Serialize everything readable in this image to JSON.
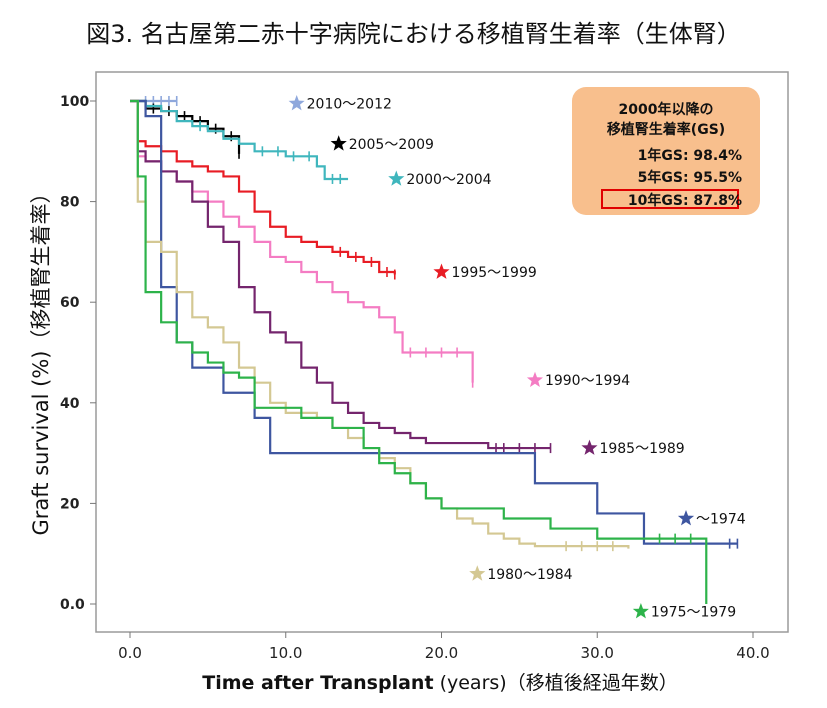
{
  "title": "図3. 名古屋第二赤十字病院における移植腎生着率（生体腎）",
  "xlabel_bold": "Time after Transplant",
  "xlabel_rest": " (years)（移植後経過年数）",
  "ylabel": "Graft survival (%)（移植腎生着率）",
  "gs_box": {
    "title1": "2000年以降の",
    "title2": "移植腎生着率(GS)",
    "gs1": "1年GS:  98.4%",
    "gs5": "5年GS:  95.5%",
    "gs10": "10年GS:  87.8%"
  },
  "chart_data": {
    "type": "line",
    "subtype": "step",
    "xlim": [
      0,
      40
    ],
    "ylim": [
      0,
      100
    ],
    "x_ticks": [
      "0.0",
      "10.0",
      "20.0",
      "30.0",
      "40.0"
    ],
    "y_ticks": [
      {
        "value": 0,
        "label": "0.0"
      },
      {
        "value": 20,
        "label": "20"
      },
      {
        "value": 40,
        "label": "40"
      },
      {
        "value": 60,
        "label": "60"
      },
      {
        "value": 80,
        "label": "80"
      },
      {
        "value": 100,
        "label": "100"
      }
    ],
    "series": [
      {
        "name": "2010～2012",
        "color": "#8fa8dc",
        "points": [
          [
            0,
            100
          ],
          [
            3,
            100
          ]
        ],
        "censored": [
          1,
          1.5,
          2,
          2.5,
          3
        ],
        "label_at": [
          10.7,
          99.5
        ]
      },
      {
        "name": "2005～2009",
        "color": "#000000",
        "points": [
          [
            0,
            100
          ],
          [
            1,
            98.5
          ],
          [
            2,
            98
          ],
          [
            3,
            97
          ],
          [
            4,
            96
          ],
          [
            5,
            94.5
          ],
          [
            6,
            93
          ],
          [
            7,
            89.5
          ]
        ],
        "censored": [
          1.5,
          2.5,
          3.5,
          4.5,
          5.5,
          6.5,
          7
        ],
        "label_at": [
          13.4,
          91.5
        ]
      },
      {
        "name": "2000～2004",
        "color": "#3fb6bd",
        "points": [
          [
            0,
            100
          ],
          [
            1,
            99
          ],
          [
            2,
            98
          ],
          [
            3,
            96
          ],
          [
            4,
            95
          ],
          [
            5,
            94
          ],
          [
            6,
            92.5
          ],
          [
            7,
            91.5
          ],
          [
            8,
            90
          ],
          [
            10,
            89
          ],
          [
            12,
            87
          ],
          [
            12.5,
            84.5
          ],
          [
            14,
            84.5
          ]
        ],
        "censored": [
          4.5,
          8.5,
          9.5,
          10.5,
          11.5,
          13,
          13.5
        ],
        "label_at": [
          17.1,
          84.5
        ]
      },
      {
        "name": "1995～1999",
        "color": "#e81c24",
        "points": [
          [
            0,
            100
          ],
          [
            0.5,
            92
          ],
          [
            1,
            91
          ],
          [
            2,
            90
          ],
          [
            3,
            88
          ],
          [
            4,
            87
          ],
          [
            5,
            86
          ],
          [
            6,
            85
          ],
          [
            7,
            82
          ],
          [
            8,
            78
          ],
          [
            9,
            75
          ],
          [
            10,
            73
          ],
          [
            11,
            72
          ],
          [
            12,
            71
          ],
          [
            13,
            70
          ],
          [
            14,
            69
          ],
          [
            15,
            68
          ],
          [
            16,
            66
          ],
          [
            17,
            65.5
          ]
        ],
        "censored": [
          13.5,
          14.5,
          15.5,
          16.5,
          17
        ],
        "label_at": [
          20,
          66
        ]
      },
      {
        "name": "1990～1994",
        "color": "#f47cc3",
        "points": [
          [
            0,
            100
          ],
          [
            0.5,
            89
          ],
          [
            1,
            88
          ],
          [
            2,
            86
          ],
          [
            3,
            84
          ],
          [
            4,
            82
          ],
          [
            5,
            80
          ],
          [
            6,
            77
          ],
          [
            7,
            75
          ],
          [
            8,
            72
          ],
          [
            9,
            69
          ],
          [
            10,
            68
          ],
          [
            11,
            66
          ],
          [
            12,
            64
          ],
          [
            13,
            62
          ],
          [
            14,
            60
          ],
          [
            15,
            59
          ],
          [
            16,
            57
          ],
          [
            17,
            54
          ],
          [
            17.5,
            50
          ],
          [
            21,
            50
          ],
          [
            22,
            44
          ]
        ],
        "censored": [
          18,
          19,
          20,
          21,
          22
        ],
        "label_at": [
          26,
          44.5
        ]
      },
      {
        "name": "1985～1989",
        "color": "#74256d",
        "points": [
          [
            0,
            100
          ],
          [
            0.5,
            90
          ],
          [
            1,
            88
          ],
          [
            2,
            86
          ],
          [
            3,
            84
          ],
          [
            4,
            80
          ],
          [
            5,
            75
          ],
          [
            6,
            72
          ],
          [
            7,
            63
          ],
          [
            8,
            58
          ],
          [
            9,
            54
          ],
          [
            10,
            52
          ],
          [
            11,
            47
          ],
          [
            12,
            44
          ],
          [
            13,
            40
          ],
          [
            14,
            38
          ],
          [
            15,
            36
          ],
          [
            16,
            35
          ],
          [
            17,
            34
          ],
          [
            18,
            33
          ],
          [
            19,
            32
          ],
          [
            23,
            31
          ],
          [
            27,
            31
          ]
        ],
        "censored": [
          23.5,
          24,
          25,
          26,
          27
        ],
        "label_at": [
          29.5,
          31
        ]
      },
      {
        "name": "～1974",
        "color": "#3e56a0",
        "points": [
          [
            0,
            100
          ],
          [
            1,
            97
          ],
          [
            2,
            88
          ],
          [
            2,
            63
          ],
          [
            3,
            63
          ],
          [
            3,
            52
          ],
          [
            4,
            47
          ],
          [
            5,
            47
          ],
          [
            6,
            42
          ],
          [
            8,
            42
          ],
          [
            8,
            37
          ],
          [
            9,
            30
          ],
          [
            20,
            30
          ],
          [
            26,
            30
          ],
          [
            26,
            24
          ],
          [
            30,
            24
          ],
          [
            30,
            18
          ],
          [
            33,
            18
          ],
          [
            33,
            12
          ],
          [
            39,
            12
          ]
        ],
        "censored": [
          38.5,
          39
        ],
        "label_at": [
          35.7,
          17
        ]
      },
      {
        "name": "1980～1984",
        "color": "#d4c893",
        "points": [
          [
            0,
            100
          ],
          [
            0.5,
            80
          ],
          [
            1,
            72
          ],
          [
            2,
            70
          ],
          [
            3,
            62
          ],
          [
            4,
            57
          ],
          [
            5,
            55
          ],
          [
            6,
            52
          ],
          [
            7,
            47
          ],
          [
            8,
            44
          ],
          [
            9,
            40
          ],
          [
            10,
            38
          ],
          [
            12,
            37
          ],
          [
            13,
            35
          ],
          [
            14,
            33
          ],
          [
            15,
            31
          ],
          [
            16,
            29
          ],
          [
            17,
            27
          ],
          [
            18,
            24
          ],
          [
            19,
            21
          ],
          [
            20,
            19
          ],
          [
            21,
            17
          ],
          [
            22,
            16
          ],
          [
            23,
            14
          ],
          [
            24,
            13
          ],
          [
            25,
            12
          ],
          [
            26,
            11.5
          ],
          [
            32,
            11
          ]
        ],
        "censored": [
          28,
          29,
          30,
          31
        ],
        "label_at": [
          22.3,
          6
        ]
      },
      {
        "name": "1975～1979",
        "color": "#2db34a",
        "points": [
          [
            0,
            100
          ],
          [
            0.5,
            85
          ],
          [
            1,
            62
          ],
          [
            2,
            56
          ],
          [
            3,
            52
          ],
          [
            4,
            50
          ],
          [
            5,
            48
          ],
          [
            6,
            46
          ],
          [
            7,
            45
          ],
          [
            8,
            39
          ],
          [
            11,
            37
          ],
          [
            13,
            35
          ],
          [
            15,
            31
          ],
          [
            16,
            28
          ],
          [
            17,
            26
          ],
          [
            18,
            24
          ],
          [
            19,
            21
          ],
          [
            20,
            19
          ],
          [
            24,
            17
          ],
          [
            27,
            15
          ],
          [
            30,
            13
          ],
          [
            37,
            12
          ],
          [
            37,
            0
          ]
        ],
        "censored": [
          34,
          35,
          36
        ],
        "label_at": [
          32.8,
          -1.5
        ]
      }
    ]
  }
}
